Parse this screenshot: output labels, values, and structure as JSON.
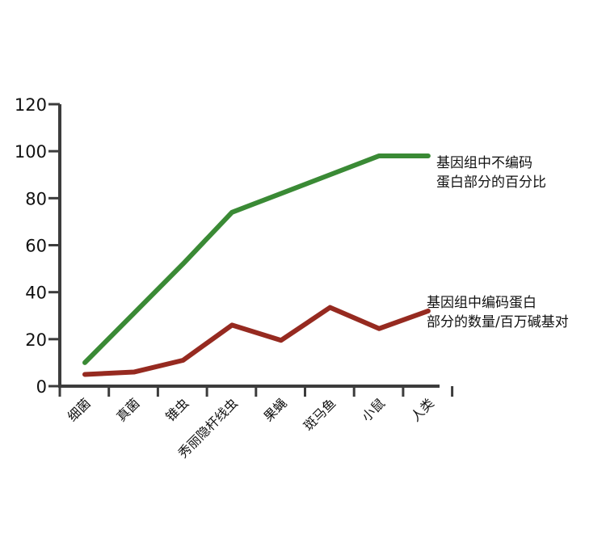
{
  "chart_data": {
    "type": "line",
    "categories": [
      "细菌",
      "真菌",
      "锥虫",
      "秀丽隐杆线虫",
      "果蝇",
      "斑马鱼",
      "小鼠",
      "人类"
    ],
    "ylim": [
      0,
      120
    ],
    "yticks": [
      0,
      20,
      40,
      60,
      80,
      100,
      120
    ],
    "grid": false,
    "legend": "inline labels at right end of each line",
    "series": [
      {
        "name_lines": [
          "基因组中不编码",
          "蛋白部分的百分比"
        ],
        "color": "#3a8a35",
        "values": [
          10,
          31,
          52,
          74,
          82,
          90,
          98,
          98
        ]
      },
      {
        "name_lines": [
          "基因组中编码蛋白",
          "部分的数量/百万碱基对"
        ],
        "color": "#962a20",
        "values": [
          5,
          6,
          11,
          26,
          19.5,
          33.5,
          24.5,
          32
        ]
      }
    ]
  }
}
